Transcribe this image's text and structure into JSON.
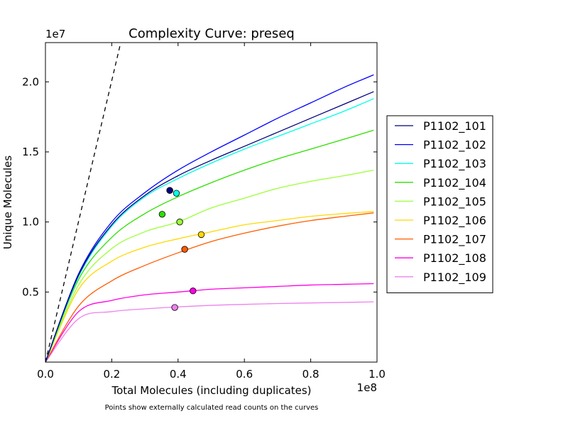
{
  "chart_data": {
    "type": "line",
    "title": "Complexity Curve: preseq",
    "xlabel": "Total Molecules (including duplicates)",
    "ylabel": "Unique Molecules",
    "x_multiplier": "1e8",
    "y_multiplier": "1e7",
    "xlim": [
      0,
      1.0
    ],
    "ylim": [
      0,
      2.28
    ],
    "x_ticks": [
      {
        "value": 0.0,
        "label": "0.0"
      },
      {
        "value": 0.2,
        "label": "0.2"
      },
      {
        "value": 0.4,
        "label": "0.4"
      },
      {
        "value": 0.6,
        "label": "0.6"
      },
      {
        "value": 0.8,
        "label": "0.8"
      },
      {
        "value": 1.0,
        "label": "1.0"
      }
    ],
    "y_ticks": [
      {
        "value": 0.5,
        "label": "0.5"
      },
      {
        "value": 1.0,
        "label": "1.0"
      },
      {
        "value": 1.5,
        "label": "1.5"
      },
      {
        "value": 2.0,
        "label": "2.0"
      }
    ],
    "grid": false,
    "legend_position": "right",
    "footnote": "Points show externally calculated read counts on the curves",
    "reference_line": {
      "style": "dashed",
      "color": "#000000",
      "x": [
        0,
        0.227
      ],
      "y": [
        0,
        2.28
      ]
    },
    "series": [
      {
        "name": "P1102_101",
        "color": "#00007f",
        "x": [
          0,
          0.1,
          0.2,
          0.3,
          0.4,
          0.5,
          0.6,
          0.7,
          0.8,
          0.9,
          0.99
        ],
        "y": [
          0,
          0.62,
          0.98,
          1.19,
          1.33,
          1.44,
          1.54,
          1.64,
          1.74,
          1.84,
          1.93
        ],
        "points": [
          {
            "x": 0.375,
            "y": 1.225
          }
        ]
      },
      {
        "name": "P1102_102",
        "color": "#0000ff",
        "x": [
          0,
          0.1,
          0.2,
          0.3,
          0.4,
          0.5,
          0.6,
          0.7,
          0.8,
          0.9,
          0.99
        ],
        "y": [
          0,
          0.63,
          1.0,
          1.21,
          1.37,
          1.5,
          1.62,
          1.74,
          1.85,
          1.96,
          2.05
        ],
        "points": [
          {
            "x": 0.375,
            "y": 1.225
          }
        ]
      },
      {
        "name": "P1102_103",
        "color": "#00ffe5",
        "x": [
          0,
          0.1,
          0.2,
          0.3,
          0.4,
          0.5,
          0.6,
          0.7,
          0.8,
          0.9,
          0.99
        ],
        "y": [
          0,
          0.61,
          0.97,
          1.18,
          1.31,
          1.42,
          1.52,
          1.61,
          1.7,
          1.79,
          1.88
        ],
        "points": [
          {
            "x": 0.395,
            "y": 1.205
          }
        ]
      },
      {
        "name": "P1102_104",
        "color": "#2ddf00",
        "x": [
          0,
          0.1,
          0.2,
          0.3,
          0.4,
          0.5,
          0.6,
          0.7,
          0.8,
          0.9,
          0.99
        ],
        "y": [
          0,
          0.59,
          0.89,
          1.06,
          1.18,
          1.28,
          1.37,
          1.45,
          1.52,
          1.59,
          1.655
        ],
        "points": [
          {
            "x": 0.352,
            "y": 1.055
          }
        ]
      },
      {
        "name": "P1102_105",
        "color": "#9cff3a",
        "x": [
          0,
          0.1,
          0.2,
          0.3,
          0.4,
          0.5,
          0.6,
          0.7,
          0.8,
          0.9,
          0.99
        ],
        "y": [
          0,
          0.55,
          0.81,
          0.93,
          1.0,
          1.1,
          1.17,
          1.24,
          1.29,
          1.33,
          1.37
        ],
        "points": [
          {
            "x": 0.405,
            "y": 1.0
          }
        ]
      },
      {
        "name": "P1102_106",
        "color": "#ffd800",
        "x": [
          0,
          0.1,
          0.2,
          0.3,
          0.4,
          0.5,
          0.6,
          0.7,
          0.8,
          0.9,
          0.99
        ],
        "y": [
          0,
          0.52,
          0.72,
          0.82,
          0.88,
          0.93,
          0.98,
          1.01,
          1.04,
          1.06,
          1.075
        ],
        "points": [
          {
            "x": 0.47,
            "y": 0.91
          }
        ]
      },
      {
        "name": "P1102_107",
        "color": "#ff5d00",
        "x": [
          0,
          0.1,
          0.2,
          0.3,
          0.4,
          0.5,
          0.6,
          0.7,
          0.8,
          0.9,
          0.99
        ],
        "y": [
          0,
          0.4,
          0.58,
          0.69,
          0.78,
          0.86,
          0.92,
          0.97,
          1.01,
          1.04,
          1.065
        ],
        "points": [
          {
            "x": 0.42,
            "y": 0.805
          }
        ]
      },
      {
        "name": "P1102_108",
        "color": "#ff00e5",
        "x": [
          0,
          0.1,
          0.2,
          0.3,
          0.4,
          0.5,
          0.6,
          0.7,
          0.8,
          0.9,
          0.99
        ],
        "y": [
          0,
          0.36,
          0.44,
          0.48,
          0.5,
          0.52,
          0.53,
          0.54,
          0.55,
          0.555,
          0.56
        ],
        "points": [
          {
            "x": 0.445,
            "y": 0.508
          }
        ]
      },
      {
        "name": "P1102_109",
        "color": "#ee82ee",
        "x": [
          0,
          0.1,
          0.2,
          0.3,
          0.4,
          0.5,
          0.6,
          0.7,
          0.8,
          0.9,
          0.99
        ],
        "y": [
          0,
          0.31,
          0.36,
          0.38,
          0.394,
          0.405,
          0.412,
          0.418,
          0.422,
          0.426,
          0.43
        ],
        "points": [
          {
            "x": 0.39,
            "y": 0.39
          }
        ]
      }
    ]
  }
}
